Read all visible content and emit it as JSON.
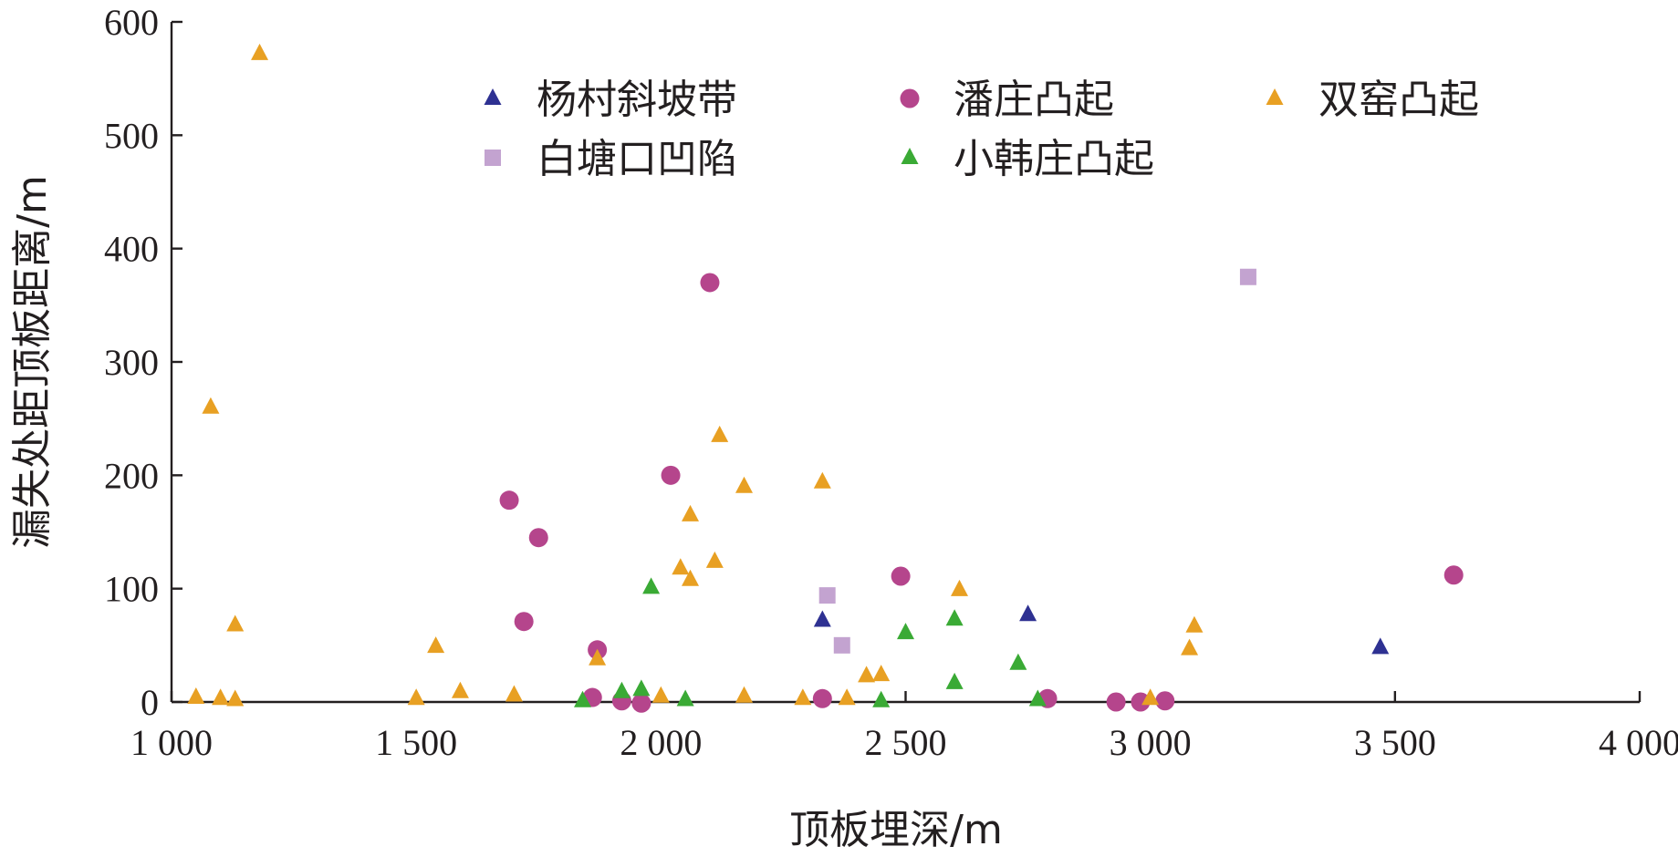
{
  "chart_data": {
    "type": "scatter",
    "title": "",
    "xlabel": "顶板埋深/m",
    "ylabel": "漏失处距顶板距离/m",
    "xlim": [
      1000,
      4000
    ],
    "ylim": [
      0,
      600
    ],
    "xticks": [
      1000,
      1500,
      2000,
      2500,
      3000,
      3500,
      4000
    ],
    "xtick_labels": [
      "1 000",
      "1 500",
      "2 000",
      "2 500",
      "3 000",
      "3 500",
      "4 000"
    ],
    "yticks": [
      0,
      100,
      200,
      300,
      400,
      500,
      600
    ],
    "ytick_labels": [
      "0",
      "100",
      "200",
      "300",
      "400",
      "500",
      "600"
    ],
    "grid": false,
    "legend_position": "top",
    "series": [
      {
        "name": "杨村斜坡带",
        "marker": "triangle",
        "color": "#2e3192",
        "points": [
          [
            2330,
            72
          ],
          [
            2750,
            77
          ],
          [
            3470,
            48
          ]
        ]
      },
      {
        "name": "潘庄凸起",
        "marker": "circle",
        "color": "#b5458c",
        "points": [
          [
            1690,
            178
          ],
          [
            1750,
            145
          ],
          [
            1720,
            71
          ],
          [
            1860,
            4
          ],
          [
            1870,
            46
          ],
          [
            1920,
            1
          ],
          [
            1960,
            -1
          ],
          [
            2020,
            200
          ],
          [
            2100,
            370
          ],
          [
            2330,
            3
          ],
          [
            2490,
            111
          ],
          [
            2790,
            3
          ],
          [
            2930,
            0
          ],
          [
            2980,
            0
          ],
          [
            3030,
            1
          ],
          [
            3620,
            112
          ]
        ]
      },
      {
        "name": "双窑凸起",
        "marker": "triangle",
        "color": "#e8a023",
        "points": [
          [
            1050,
            4
          ],
          [
            1080,
            260
          ],
          [
            1100,
            3
          ],
          [
            1130,
            68
          ],
          [
            1130,
            2
          ],
          [
            1180,
            572
          ],
          [
            1500,
            3
          ],
          [
            1540,
            49
          ],
          [
            1590,
            9
          ],
          [
            1700,
            6
          ],
          [
            1870,
            38
          ],
          [
            2000,
            5
          ],
          [
            2040,
            118
          ],
          [
            2060,
            108
          ],
          [
            2060,
            165
          ],
          [
            2110,
            124
          ],
          [
            2120,
            235
          ],
          [
            2170,
            190
          ],
          [
            2170,
            5
          ],
          [
            2290,
            3
          ],
          [
            2330,
            194
          ],
          [
            2380,
            3
          ],
          [
            2420,
            23
          ],
          [
            2450,
            24
          ],
          [
            2610,
            99
          ],
          [
            3000,
            3
          ],
          [
            3080,
            47
          ],
          [
            3090,
            67
          ]
        ]
      },
      {
        "name": "白塘口凹陷",
        "marker": "square",
        "color": "#c3a3d0",
        "points": [
          [
            2340,
            94
          ],
          [
            2370,
            50
          ],
          [
            3200,
            375
          ]
        ]
      },
      {
        "name": "小韩庄凸起",
        "marker": "triangle",
        "color": "#3aaa35",
        "points": [
          [
            1840,
            1
          ],
          [
            1920,
            9
          ],
          [
            1960,
            11
          ],
          [
            1980,
            101
          ],
          [
            2050,
            2
          ],
          [
            2450,
            1
          ],
          [
            2500,
            61
          ],
          [
            2600,
            73
          ],
          [
            2600,
            17
          ],
          [
            2730,
            34
          ],
          [
            2770,
            2
          ]
        ]
      }
    ]
  }
}
